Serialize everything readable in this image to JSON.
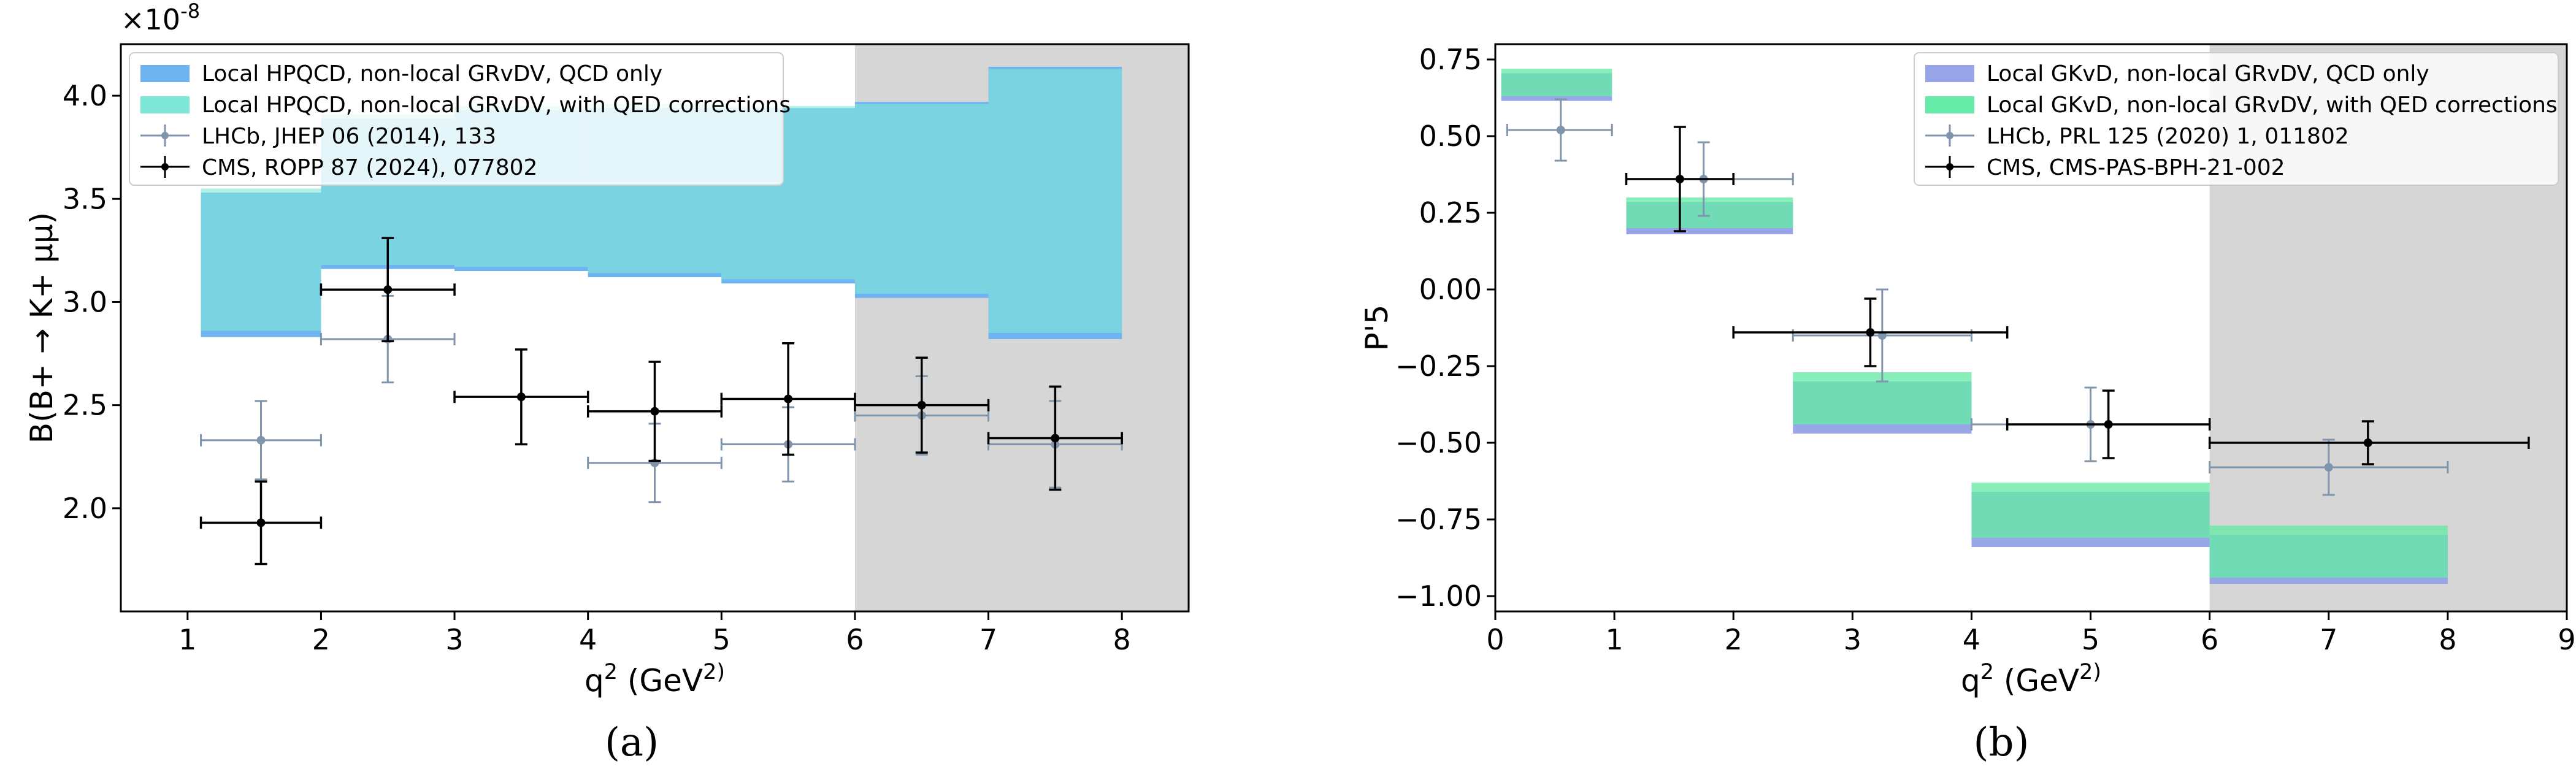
{
  "chart_data": [
    {
      "id": "a",
      "type": "bar",
      "panel_label": "(a)",
      "xlabel": "q^2 (GeV^2)",
      "ylabel": "B(B+ → K+ μμ)",
      "y_multiplier": "×10^-8",
      "xlim": [
        0.5,
        8.5
      ],
      "ylim": [
        1.5,
        4.25
      ],
      "xticks": [
        1,
        2,
        3,
        4,
        5,
        6,
        7,
        8
      ],
      "yticks": [
        2.0,
        2.5,
        3.0,
        3.5,
        4.0
      ],
      "ytick_labels": [
        "2.0",
        "2.5",
        "3.0",
        "3.5",
        "4.0"
      ],
      "shaded_region": [
        6,
        8.5
      ],
      "grid": false,
      "legend_position": "top-left",
      "predictions": [
        {
          "name": "Local HPQCD, non-local GRvDV, QCD only",
          "color": "#6fb3f0",
          "bins": [
            [
              1.1,
              2,
              2.83,
              3.53
            ],
            [
              2,
              3,
              3.16,
              3.89
            ],
            [
              3,
              4,
              3.15,
              3.93
            ],
            [
              4,
              5,
              3.12,
              3.94
            ],
            [
              5,
              6,
              3.09,
              3.94
            ],
            [
              6,
              7,
              3.02,
              3.97
            ],
            [
              7,
              8,
              2.82,
              4.14
            ]
          ]
        },
        {
          "name": "Local HPQCD, non-local GRvDV, with QED corrections",
          "color": "#7fe7d6",
          "bins": [
            [
              1.1,
              2,
              2.86,
              3.55
            ],
            [
              2,
              3,
              3.18,
              3.91
            ],
            [
              3,
              4,
              3.17,
              3.95
            ],
            [
              4,
              5,
              3.14,
              3.96
            ],
            [
              5,
              6,
              3.11,
              3.95
            ],
            [
              6,
              7,
              3.04,
              3.96
            ],
            [
              7,
              8,
              2.85,
              4.13
            ]
          ]
        }
      ],
      "measurements": [
        {
          "name": "LHCb, JHEP 06 (2014), 133",
          "color": "#7f95ac",
          "points": [
            [
              1.55,
              1.1,
              2.0,
              2.33,
              0.19,
              0.19
            ],
            [
              2.5,
              2.0,
              3.0,
              2.82,
              0.21,
              0.21
            ],
            [
              4.5,
              4.0,
              5.0,
              2.22,
              0.19,
              0.19
            ],
            [
              5.5,
              5.0,
              6.0,
              2.31,
              0.18,
              0.18
            ],
            [
              6.5,
              6.0,
              7.0,
              2.45,
              0.19,
              0.19
            ],
            [
              7.5,
              7.0,
              8.0,
              2.31,
              0.21,
              0.21
            ]
          ]
        },
        {
          "name": "CMS, ROPP 87 (2024), 077802",
          "color": "#000000",
          "points": [
            [
              1.55,
              1.1,
              2.0,
              1.93,
              0.2,
              0.2
            ],
            [
              2.5,
              2.0,
              3.0,
              3.06,
              0.25,
              0.25
            ],
            [
              3.5,
              3.0,
              4.0,
              2.54,
              0.23,
              0.23
            ],
            [
              4.5,
              4.0,
              5.0,
              2.47,
              0.24,
              0.24
            ],
            [
              5.5,
              5.0,
              6.0,
              2.53,
              0.27,
              0.27
            ],
            [
              6.5,
              6.0,
              7.0,
              2.5,
              0.23,
              0.23
            ],
            [
              7.5,
              7.0,
              8.0,
              2.34,
              0.25,
              0.25
            ]
          ]
        }
      ]
    },
    {
      "id": "b",
      "type": "bar",
      "panel_label": "(b)",
      "xlabel": "q^2 (GeV^2)",
      "ylabel": "P'5",
      "xlim": [
        0,
        9
      ],
      "ylim": [
        -1.05,
        0.8
      ],
      "xticks": [
        0,
        1,
        2,
        3,
        4,
        5,
        6,
        7,
        8,
        9
      ],
      "yticks": [
        -1.0,
        -0.75,
        -0.5,
        -0.25,
        0.0,
        0.25,
        0.5,
        0.75
      ],
      "ytick_labels": [
        "−1.00",
        "−0.75",
        "−0.50",
        "−0.25",
        "0.00",
        "0.25",
        "0.50",
        "0.75"
      ],
      "shaded_region": [
        6,
        9
      ],
      "grid": false,
      "legend_position": "top-right",
      "predictions": [
        {
          "name": "Local GKvD, non-local GRvDV, QCD only",
          "color": "#98a6e8",
          "bins": [
            [
              0.05,
              0.98,
              0.615,
              0.705
            ],
            [
              1.1,
              2.5,
              0.18,
              0.285
            ],
            [
              2.5,
              4.0,
              -0.47,
              -0.3
            ],
            [
              4.0,
              6.0,
              -0.84,
              -0.66
            ],
            [
              6.0,
              8.0,
              -0.96,
              -0.8
            ]
          ]
        },
        {
          "name": "Local GKvD, non-local GRvDV, with QED corrections",
          "color": "#66eba8",
          "bins": [
            [
              0.05,
              0.98,
              0.63,
              0.72
            ],
            [
              1.1,
              2.5,
              0.2,
              0.3
            ],
            [
              2.5,
              4.0,
              -0.44,
              -0.27
            ],
            [
              4.0,
              6.0,
              -0.81,
              -0.63
            ],
            [
              6.0,
              8.0,
              -0.94,
              -0.77
            ]
          ]
        }
      ],
      "measurements": [
        {
          "name": "LHCb, PRL 125 (2020) 1, 011802",
          "color": "#7f95ac",
          "points": [
            [
              0.55,
              0.1,
              0.98,
              0.52,
              0.1,
              0.1
            ],
            [
              1.75,
              1.1,
              2.5,
              0.36,
              0.12,
              0.12
            ],
            [
              3.25,
              2.5,
              4.0,
              -0.15,
              0.15,
              0.15
            ],
            [
              5.0,
              4.0,
              6.0,
              -0.44,
              0.12,
              0.12
            ],
            [
              7.0,
              6.0,
              8.0,
              -0.58,
              0.09,
              0.09
            ]
          ]
        },
        {
          "name": "CMS, CMS-PAS-BPH-21-002",
          "color": "#000000",
          "points": [
            [
              1.55,
              1.1,
              2.0,
              0.36,
              0.17,
              0.17
            ],
            [
              3.15,
              2.0,
              4.3,
              -0.14,
              0.11,
              0.11
            ],
            [
              5.15,
              4.3,
              6.0,
              -0.44,
              0.11,
              0.11
            ],
            [
              7.33,
              6.0,
              8.68,
              -0.5,
              0.07,
              0.07
            ]
          ]
        }
      ]
    }
  ]
}
